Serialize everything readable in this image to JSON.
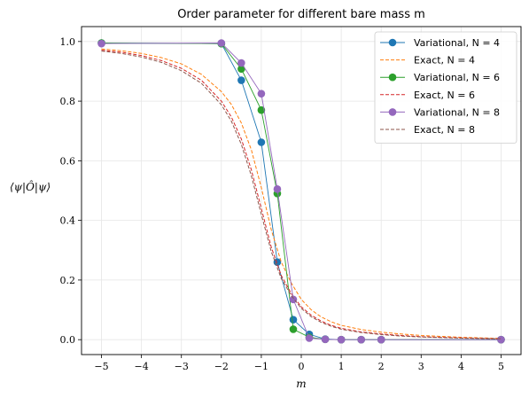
{
  "chart_data": {
    "type": "line",
    "title": "Order parameter for different bare mass m",
    "xlabel": "m",
    "ylabel": "⟨ψ|Ô|ψ⟩",
    "xlim": [
      -5.5,
      5.5
    ],
    "ylim": [
      -0.05,
      1.05
    ],
    "xticks": [
      -5,
      -4,
      -3,
      -2,
      -1,
      0,
      1,
      2,
      3,
      4,
      5
    ],
    "xtick_labels": [
      "−5",
      "−4",
      "−3",
      "−2",
      "−1",
      "0",
      "1",
      "2",
      "3",
      "4",
      "5"
    ],
    "yticks": [
      0.0,
      0.2,
      0.4,
      0.6,
      0.8,
      1.0
    ],
    "ytick_labels": [
      "0.0",
      "0.2",
      "0.4",
      "0.6",
      "0.8",
      "1.0"
    ],
    "grid": true,
    "legend_position": "top-right",
    "series": [
      {
        "name": "Variational, N = 4",
        "style": "solid-marker",
        "color": "#1f77b4",
        "x": [
          -5,
          -2,
          -1.5,
          -1,
          -0.6,
          -0.2,
          0.2,
          0.6,
          1,
          1.5,
          2,
          5
        ],
        "y": [
          0.995,
          0.993,
          0.87,
          0.662,
          0.26,
          0.067,
          0.018,
          0.002,
          0.0,
          0.0,
          0.0,
          0.0
        ]
      },
      {
        "name": "Exact, N = 4",
        "style": "dashed",
        "color": "#ff7f0e",
        "x": [
          -5,
          -4.5,
          -4,
          -3.5,
          -3,
          -2.5,
          -2,
          -1.75,
          -1.5,
          -1.25,
          -1,
          -0.75,
          -0.5,
          -0.25,
          0,
          0.25,
          0.5,
          0.75,
          1,
          1.5,
          2,
          2.5,
          3,
          4,
          5
        ],
        "y": [
          0.975,
          0.969,
          0.96,
          0.946,
          0.925,
          0.89,
          0.832,
          0.789,
          0.727,
          0.637,
          0.51,
          0.368,
          0.26,
          0.19,
          0.135,
          0.1,
          0.076,
          0.06,
          0.048,
          0.034,
          0.025,
          0.019,
          0.014,
          0.008,
          0.004
        ]
      },
      {
        "name": "Variational, N = 6",
        "style": "solid-marker",
        "color": "#2ca02c",
        "x": [
          -5,
          -2,
          -1.5,
          -1,
          -0.6,
          -0.2,
          0.2,
          0.6,
          1,
          1.5,
          2,
          5
        ],
        "y": [
          0.995,
          0.993,
          0.908,
          0.77,
          0.49,
          0.035,
          0.008,
          0.001,
          0.0,
          0.0,
          0.0,
          0.0
        ]
      },
      {
        "name": "Exact, N = 6",
        "style": "dashed",
        "color": "#d62728",
        "x": [
          -5,
          -4.5,
          -4,
          -3.5,
          -3,
          -2.5,
          -2,
          -1.75,
          -1.5,
          -1.25,
          -1,
          -0.75,
          -0.5,
          -0.25,
          0,
          0.25,
          0.5,
          0.75,
          1,
          1.5,
          2,
          2.5,
          3,
          4,
          5
        ],
        "y": [
          0.971,
          0.964,
          0.953,
          0.936,
          0.91,
          0.87,
          0.8,
          0.747,
          0.673,
          0.57,
          0.44,
          0.31,
          0.215,
          0.155,
          0.11,
          0.082,
          0.062,
          0.048,
          0.038,
          0.026,
          0.019,
          0.014,
          0.01,
          0.006,
          0.003
        ]
      },
      {
        "name": "Variational, N = 8",
        "style": "solid-marker",
        "color": "#9467bd",
        "x": [
          -5,
          -2,
          -1.5,
          -1,
          -0.6,
          -0.2,
          0.2,
          0.6,
          1,
          1.5,
          2,
          5
        ],
        "y": [
          0.993,
          0.995,
          0.928,
          0.825,
          0.505,
          0.135,
          0.005,
          0.001,
          0.0,
          0.0,
          0.0,
          0.0
        ]
      },
      {
        "name": "Exact, N = 8",
        "style": "dashed",
        "color": "#8c564b",
        "x": [
          -5,
          -4.5,
          -4,
          -3.5,
          -3,
          -2.5,
          -2,
          -1.75,
          -1.5,
          -1.25,
          -1,
          -0.75,
          -0.5,
          -0.25,
          0,
          0.25,
          0.5,
          0.75,
          1,
          1.5,
          2,
          2.5,
          3,
          4,
          5
        ],
        "y": [
          0.968,
          0.96,
          0.948,
          0.93,
          0.902,
          0.86,
          0.788,
          0.733,
          0.655,
          0.55,
          0.42,
          0.295,
          0.205,
          0.148,
          0.105,
          0.077,
          0.058,
          0.045,
          0.035,
          0.024,
          0.017,
          0.012,
          0.009,
          0.005,
          0.003
        ]
      }
    ]
  }
}
